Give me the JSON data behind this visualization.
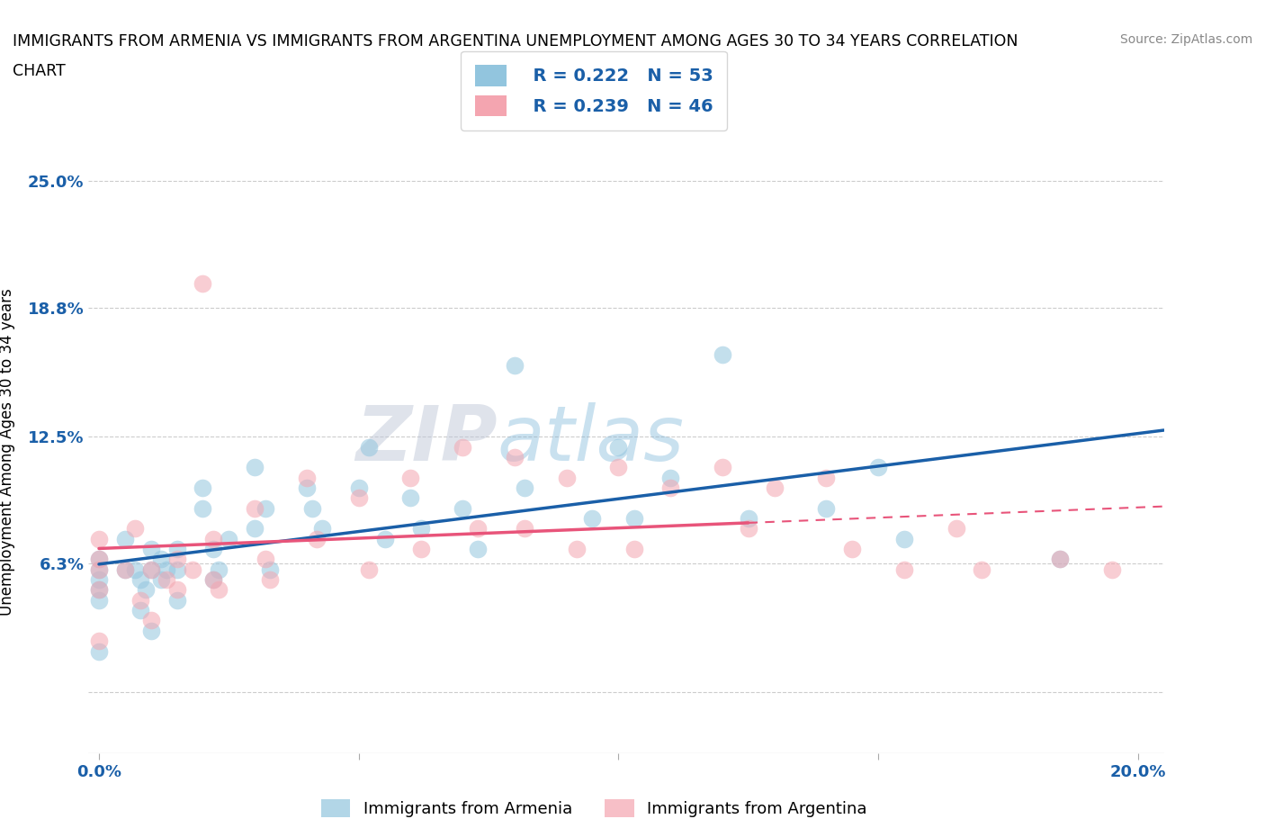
{
  "title_line1": "IMMIGRANTS FROM ARMENIA VS IMMIGRANTS FROM ARGENTINA UNEMPLOYMENT AMONG AGES 30 TO 34 YEARS CORRELATION",
  "title_line2": "CHART",
  "source": "Source: ZipAtlas.com",
  "ylabel": "Unemployment Among Ages 30 to 34 years",
  "xlim": [
    -0.002,
    0.205
  ],
  "ylim": [
    -0.03,
    0.265
  ],
  "yticks": [
    0.0,
    0.063,
    0.125,
    0.188,
    0.25
  ],
  "ytick_labels": [
    "",
    "6.3%",
    "12.5%",
    "18.8%",
    "25.0%"
  ],
  "xticks": [
    0.0,
    0.05,
    0.1,
    0.15,
    0.2
  ],
  "xtick_labels": [
    "0.0%",
    "",
    "",
    "",
    "20.0%"
  ],
  "armenia_color": "#92c5de",
  "argentina_color": "#f4a5b0",
  "armenia_line_color": "#1a5fa8",
  "argentina_line_color": "#e8547a",
  "armenia_dash_color": "#cccccc",
  "armenia_R": 0.222,
  "armenia_N": 53,
  "argentina_R": 0.239,
  "argentina_N": 46,
  "background_color": "#ffffff",
  "grid_color": "#cccccc",
  "armenia_x": [
    0.0,
    0.0,
    0.0,
    0.0,
    0.0,
    0.0,
    0.005,
    0.005,
    0.007,
    0.008,
    0.008,
    0.009,
    0.01,
    0.01,
    0.01,
    0.012,
    0.012,
    0.013,
    0.015,
    0.015,
    0.015,
    0.02,
    0.02,
    0.022,
    0.022,
    0.023,
    0.025,
    0.03,
    0.03,
    0.032,
    0.033,
    0.04,
    0.041,
    0.043,
    0.05,
    0.052,
    0.055,
    0.06,
    0.062,
    0.07,
    0.073,
    0.08,
    0.082,
    0.095,
    0.1,
    0.103,
    0.11,
    0.12,
    0.125,
    0.14,
    0.15,
    0.155,
    0.185
  ],
  "armenia_y": [
    0.065,
    0.06,
    0.055,
    0.05,
    0.045,
    0.02,
    0.075,
    0.06,
    0.06,
    0.055,
    0.04,
    0.05,
    0.07,
    0.06,
    0.03,
    0.065,
    0.055,
    0.06,
    0.07,
    0.06,
    0.045,
    0.1,
    0.09,
    0.07,
    0.055,
    0.06,
    0.075,
    0.11,
    0.08,
    0.09,
    0.06,
    0.1,
    0.09,
    0.08,
    0.1,
    0.12,
    0.075,
    0.095,
    0.08,
    0.09,
    0.07,
    0.16,
    0.1,
    0.085,
    0.12,
    0.085,
    0.105,
    0.165,
    0.085,
    0.09,
    0.11,
    0.075,
    0.065
  ],
  "argentina_x": [
    0.0,
    0.0,
    0.0,
    0.0,
    0.0,
    0.005,
    0.007,
    0.008,
    0.01,
    0.01,
    0.013,
    0.015,
    0.015,
    0.018,
    0.02,
    0.022,
    0.022,
    0.023,
    0.03,
    0.032,
    0.033,
    0.04,
    0.042,
    0.05,
    0.052,
    0.06,
    0.062,
    0.07,
    0.073,
    0.08,
    0.082,
    0.09,
    0.092,
    0.1,
    0.103,
    0.11,
    0.12,
    0.125,
    0.13,
    0.14,
    0.145,
    0.155,
    0.165,
    0.17,
    0.185,
    0.195
  ],
  "argentina_y": [
    0.075,
    0.065,
    0.06,
    0.05,
    0.025,
    0.06,
    0.08,
    0.045,
    0.06,
    0.035,
    0.055,
    0.065,
    0.05,
    0.06,
    0.2,
    0.075,
    0.055,
    0.05,
    0.09,
    0.065,
    0.055,
    0.105,
    0.075,
    0.095,
    0.06,
    0.105,
    0.07,
    0.12,
    0.08,
    0.115,
    0.08,
    0.105,
    0.07,
    0.11,
    0.07,
    0.1,
    0.11,
    0.08,
    0.1,
    0.105,
    0.07,
    0.06,
    0.08,
    0.06,
    0.065,
    0.06
  ]
}
